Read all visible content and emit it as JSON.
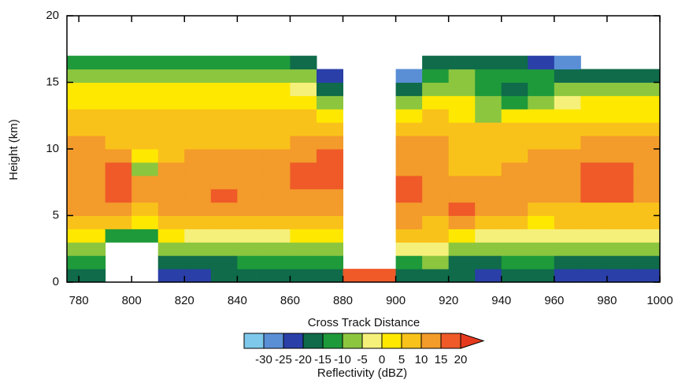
{
  "chart_data": {
    "type": "heatmap",
    "xlabel": "Cross Track Distance",
    "ylabel": "Height (km)",
    "xlim": [
      775.5,
      1000
    ],
    "xticks": [
      780,
      800,
      820,
      840,
      860,
      880,
      900,
      920,
      940,
      960,
      980,
      1000
    ],
    "ylim": [
      0,
      20
    ],
    "yticks": [
      0,
      5,
      10,
      15,
      20
    ],
    "x": [
      785,
      795,
      805,
      815,
      825,
      835,
      845,
      855,
      865,
      875,
      885,
      895,
      905,
      915,
      925,
      935,
      945,
      955,
      965,
      975,
      985,
      995
    ],
    "y": [
      0.5,
      1.5,
      2.5,
      3.5,
      4.5,
      5.5,
      6.5,
      7.5,
      8.5,
      9.5,
      10.5,
      11.5,
      12.5,
      13.5,
      14.5,
      15.5,
      16.5,
      17.5
    ],
    "z": [
      [
        -18,
        -12,
        -8,
        2,
        7,
        12,
        13,
        13,
        14,
        13,
        10,
        7,
        7,
        4,
        2,
        -7,
        -14,
        null
      ],
      [
        null,
        null,
        null,
        -12,
        7,
        12,
        16,
        16,
        16,
        13,
        8,
        7,
        6,
        4,
        2,
        -8,
        -14,
        null
      ],
      [
        null,
        null,
        null,
        -14,
        4,
        9,
        10,
        11,
        -7,
        3,
        7,
        6,
        5,
        4,
        2,
        -8,
        -14,
        null
      ],
      [
        -22,
        -16,
        -8,
        2,
        8,
        12,
        12,
        13,
        10,
        7,
        5,
        7,
        6,
        4,
        2,
        -8,
        -14,
        null
      ],
      [
        -22,
        -16,
        -10,
        -4,
        5,
        12,
        14,
        13,
        12,
        12,
        8,
        7,
        6,
        4,
        2,
        -8,
        -14,
        null
      ],
      [
        -20,
        -16,
        -10,
        -3,
        6,
        13,
        16,
        13,
        13,
        12,
        7,
        7,
        7,
        4,
        2,
        -8,
        -14,
        null
      ],
      [
        -20,
        -15,
        -9,
        -3,
        6,
        12,
        13,
        13,
        13,
        12,
        7,
        7,
        6,
        4,
        2,
        -8,
        -14,
        null
      ],
      [
        -18,
        -14,
        -9,
        -2,
        7,
        12,
        13,
        13,
        13,
        12,
        7,
        7,
        6,
        4,
        2,
        -8,
        -15,
        null
      ],
      [
        -20,
        -14,
        -8,
        2,
        8,
        12,
        14,
        16,
        16,
        13,
        10,
        7,
        6,
        4,
        -2,
        -10,
        -18,
        null
      ],
      [
        -16,
        -12,
        -7,
        2,
        8,
        12,
        13,
        16,
        16,
        15,
        12,
        7,
        4,
        -8,
        -16,
        -24,
        null,
        null
      ],
      [
        15,
        null,
        null,
        null,
        null,
        null,
        null,
        null,
        null,
        null,
        null,
        null,
        null,
        null,
        null,
        null,
        null,
        null
      ],
      [
        15,
        null,
        null,
        null,
        null,
        null,
        null,
        null,
        null,
        null,
        null,
        null,
        null,
        null,
        null,
        null,
        null,
        null
      ],
      [
        -18,
        -12,
        -5,
        8,
        12,
        14,
        15,
        16,
        13,
        12,
        10,
        5,
        2,
        -8,
        -16,
        -26,
        null,
        null
      ],
      [
        -16,
        -10,
        -5,
        5,
        8,
        12,
        14,
        12,
        12,
        13,
        13,
        8,
        7,
        2,
        -8,
        -14,
        -20,
        null
      ],
      [
        -20,
        -16,
        -8,
        4,
        10,
        16,
        12,
        13,
        8,
        7,
        7,
        5,
        3,
        2,
        -6,
        -10,
        -18,
        null
      ],
      [
        -24,
        -16,
        -8,
        -3,
        5,
        10,
        12,
        12,
        8,
        7,
        7,
        5,
        -8,
        -10,
        -14,
        -12,
        -18,
        null
      ],
      [
        -18,
        -14,
        -8,
        -3,
        6,
        12,
        12,
        12,
        12,
        8,
        7,
        5,
        2,
        -12,
        -16,
        -14,
        -18,
        null
      ],
      [
        -20,
        -14,
        -8,
        -3,
        4,
        8,
        12,
        12,
        12,
        12,
        7,
        5,
        2,
        -8,
        -12,
        -14,
        -24,
        null
      ],
      [
        -22,
        -16,
        -10,
        -4,
        5,
        8,
        12,
        13,
        13,
        12,
        8,
        5,
        4,
        -4,
        -10,
        -16,
        -26,
        null
      ],
      [
        -24,
        -18,
        -10,
        -4,
        5,
        8,
        16,
        16,
        16,
        13,
        12,
        7,
        4,
        2,
        -10,
        -16,
        null,
        null
      ],
      [
        -24,
        -18,
        -10,
        -4,
        5,
        8,
        16,
        16,
        16,
        13,
        12,
        7,
        4,
        2,
        -8,
        -16,
        null,
        null
      ],
      [
        -24,
        -18,
        -10,
        -4,
        5,
        8,
        13,
        14,
        13,
        12,
        12,
        7,
        4,
        2,
        -8,
        -16,
        null,
        null
      ]
    ],
    "colorbar": {
      "label": "Reflectivity (dBZ)",
      "levels": [
        -30,
        -25,
        -20,
        -15,
        -10,
        -5,
        0,
        5,
        10,
        15,
        20
      ],
      "colors": [
        "#7ec8ec",
        "#5a8fd6",
        "#2a3fa8",
        "#0f6b4a",
        "#1e9a3a",
        "#8cc63f",
        "#f5f07a",
        "#ffe800",
        "#f9c21a",
        "#f39b2b",
        "#ef5a28",
        "#e63a1e"
      ]
    }
  }
}
